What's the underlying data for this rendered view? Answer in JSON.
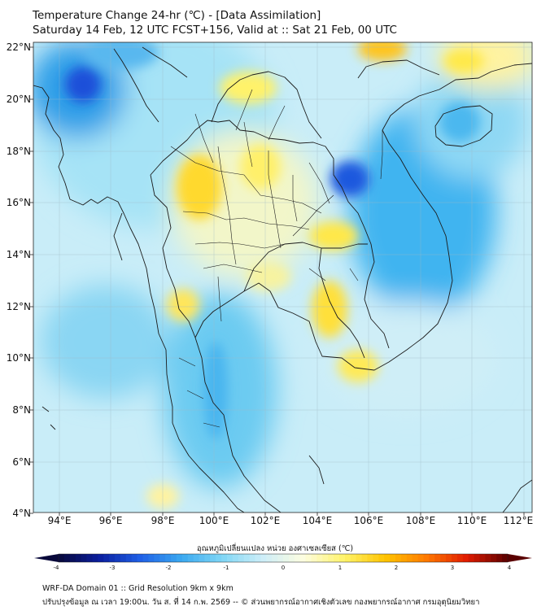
{
  "title_line1": "Temperature Change 24-hr (℃) - [Data Assimilation]",
  "title_line2": "Saturday 14 Feb, 12 UTC FCST+156, Valid at :: Sat 21 Feb, 00 UTC",
  "lat_labels": [
    "22°N",
    "20°N",
    "18°N",
    "16°N",
    "14°N",
    "12°N",
    "10°N",
    "8°N",
    "6°N",
    "4°N"
  ],
  "lon_labels": [
    "94°E",
    "96°E",
    "98°E",
    "100°E",
    "102°E",
    "104°E",
    "106°E",
    "108°E",
    "110°E",
    "112°E"
  ],
  "colorbar": {
    "label": "อุณหภูมิเปลี่ยนแปลง หน่วย องศาเซลเซียส (℃)",
    "ticks": [
      "-4",
      "-3",
      "-2",
      "-1",
      "0",
      "1",
      "2",
      "3",
      "4"
    ],
    "min": -4,
    "max": 4,
    "colors": [
      "#08083a",
      "#0a1e9e",
      "#1f5fe6",
      "#3aa8f0",
      "#7fd6f5",
      "#cdeef8",
      "#fdfde0",
      "#fff36a",
      "#ffc400",
      "#ff7a00",
      "#e01a00",
      "#5a0000"
    ]
  },
  "footer_line1": "WRF-DA Domain 01 :: Grid Resolution 9km x 9km",
  "footer_line2": "ปรับปรุงข้อมูล ณ เวลา 19:00น. วัน ส. ที่ 14 ก.พ. 2569 -- © ส่วนพยากรณ์อากาศเชิงตัวเลข กองพยากรณ์อากาศ กรมอุตุนิยมวิทยา"
}
